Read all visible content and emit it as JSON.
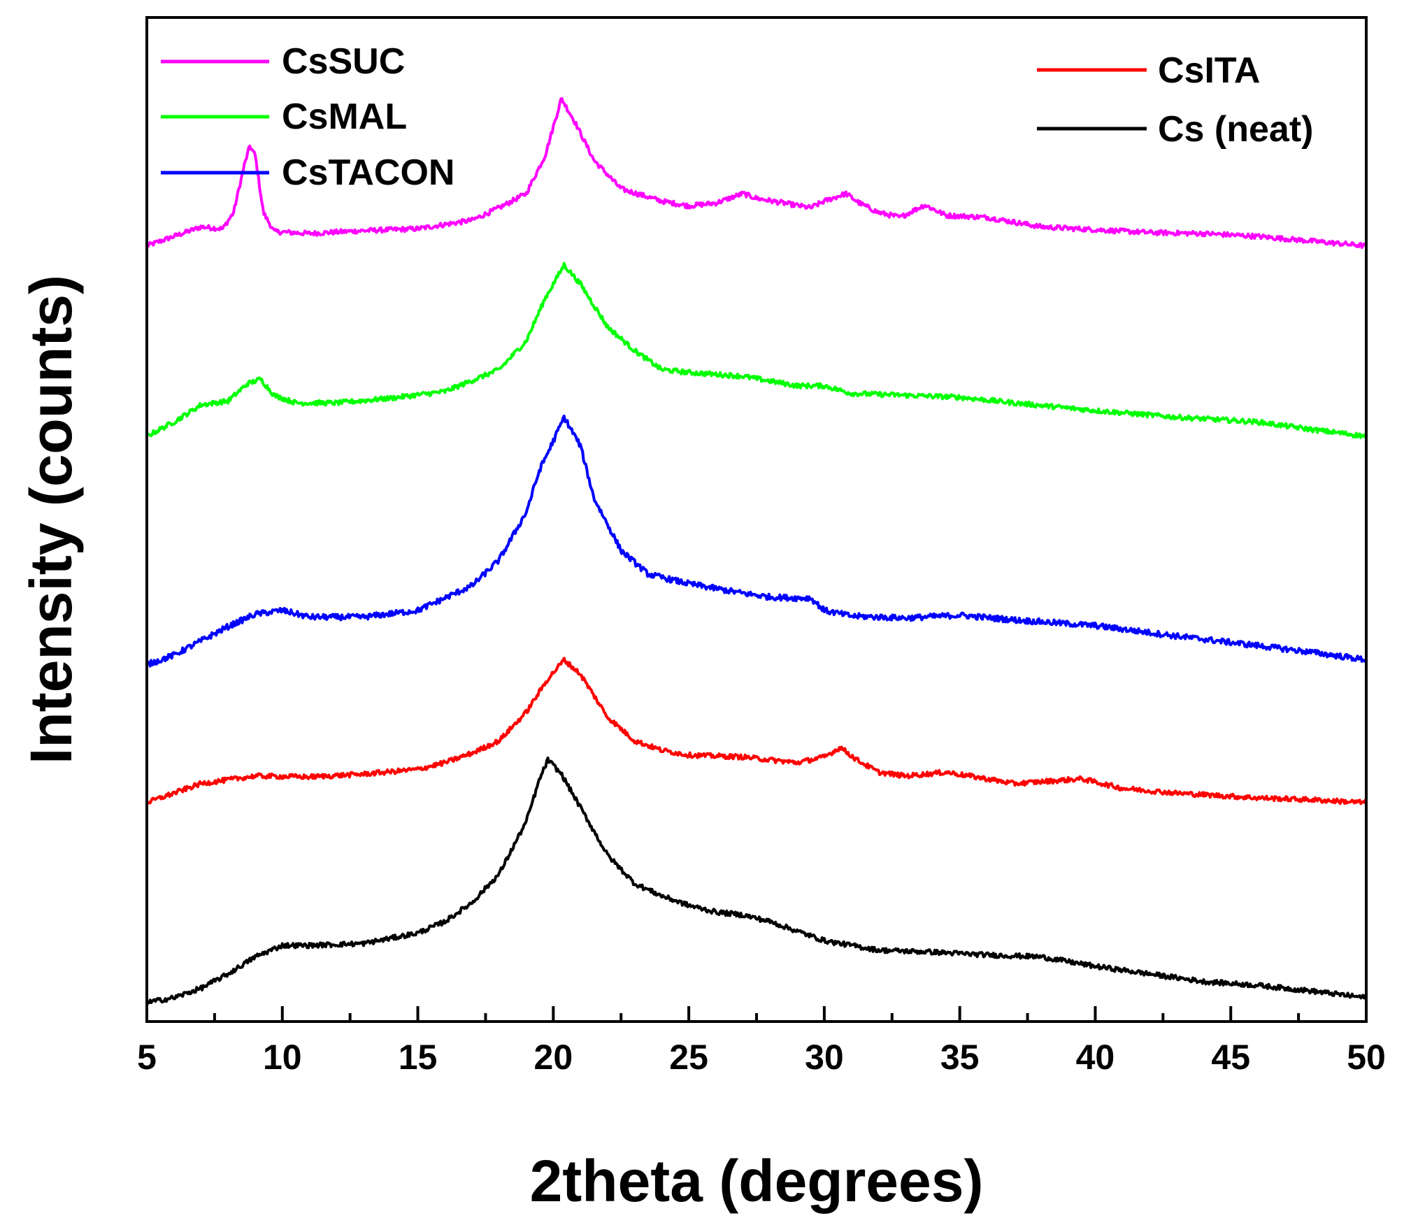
{
  "chart_data": {
    "type": "line",
    "title": "",
    "xlabel": "2theta (degrees)",
    "ylabel": "Intensity (counts)",
    "xlim": [
      5,
      50
    ],
    "ylim": [
      0,
      10.55
    ],
    "grid": false,
    "x_ticks": [
      5,
      10,
      15,
      20,
      25,
      30,
      35,
      40,
      45,
      50
    ],
    "x_tick_labels": [
      "5",
      "10",
      "15",
      "20",
      "25",
      "30",
      "35",
      "40",
      "45",
      "50"
    ],
    "y_ticks_shown": false,
    "legend": [
      {
        "label": "CsSUC",
        "color": "#ff00ff",
        "placement": "top-left"
      },
      {
        "label": "CsMAL",
        "color": "#00ff00",
        "placement": "top-left"
      },
      {
        "label": "CsTACON",
        "color": "#0000ff",
        "placement": "top-left"
      },
      {
        "label": "CsITA",
        "color": "#ff0000",
        "placement": "top-right"
      },
      {
        "label": "Cs (neat)",
        "color": "#000000",
        "placement": "top-right"
      }
    ],
    "series": [
      {
        "name": "CsSUC",
        "color": "#ff00ff",
        "noise": 0.025,
        "points": [
          [
            5,
            8.15
          ],
          [
            6,
            8.25
          ],
          [
            7,
            8.35
          ],
          [
            7.8,
            8.33
          ],
          [
            8.2,
            8.5
          ],
          [
            8.6,
            9.0
          ],
          [
            8.8,
            9.2
          ],
          [
            9.0,
            9.1
          ],
          [
            9.3,
            8.5
          ],
          [
            9.7,
            8.3
          ],
          [
            11,
            8.28
          ],
          [
            13,
            8.31
          ],
          [
            15,
            8.33
          ],
          [
            17,
            8.42
          ],
          [
            18,
            8.55
          ],
          [
            19,
            8.7
          ],
          [
            19.7,
            9.1
          ],
          [
            20.3,
            9.7
          ],
          [
            20.8,
            9.45
          ],
          [
            21.5,
            9.05
          ],
          [
            22.5,
            8.75
          ],
          [
            24,
            8.62
          ],
          [
            25,
            8.57
          ],
          [
            26,
            8.6
          ],
          [
            27,
            8.7
          ],
          [
            27.5,
            8.65
          ],
          [
            28.5,
            8.6
          ],
          [
            29.5,
            8.55
          ],
          [
            30,
            8.62
          ],
          [
            30.8,
            8.7
          ],
          [
            31.3,
            8.6
          ],
          [
            32,
            8.5
          ],
          [
            32.8,
            8.45
          ],
          [
            33.7,
            8.58
          ],
          [
            34.5,
            8.47
          ],
          [
            36,
            8.45
          ],
          [
            38,
            8.35
          ],
          [
            40,
            8.32
          ],
          [
            42,
            8.29
          ],
          [
            44,
            8.28
          ],
          [
            46,
            8.25
          ],
          [
            48,
            8.2
          ],
          [
            50,
            8.15
          ]
        ]
      },
      {
        "name": "CsMAL",
        "color": "#00ff00",
        "noise": 0.025,
        "points": [
          [
            5,
            6.15
          ],
          [
            6,
            6.3
          ],
          [
            7,
            6.48
          ],
          [
            8,
            6.52
          ],
          [
            8.7,
            6.7
          ],
          [
            9.2,
            6.75
          ],
          [
            9.7,
            6.58
          ],
          [
            10.5,
            6.5
          ],
          [
            12,
            6.5
          ],
          [
            14,
            6.55
          ],
          [
            16,
            6.62
          ],
          [
            18,
            6.85
          ],
          [
            19,
            7.15
          ],
          [
            19.7,
            7.6
          ],
          [
            20.4,
            7.95
          ],
          [
            21,
            7.75
          ],
          [
            22,
            7.3
          ],
          [
            23,
            7.05
          ],
          [
            24,
            6.85
          ],
          [
            25,
            6.82
          ],
          [
            26,
            6.8
          ],
          [
            27,
            6.78
          ],
          [
            28,
            6.73
          ],
          [
            29,
            6.68
          ],
          [
            30,
            6.68
          ],
          [
            31,
            6.6
          ],
          [
            33,
            6.58
          ],
          [
            35,
            6.56
          ],
          [
            37,
            6.5
          ],
          [
            40,
            6.42
          ],
          [
            43,
            6.35
          ],
          [
            46,
            6.3
          ],
          [
            48,
            6.22
          ],
          [
            50,
            6.15
          ]
        ]
      },
      {
        "name": "CsTACON",
        "color": "#0000ff",
        "noise": 0.03,
        "points": [
          [
            5,
            3.75
          ],
          [
            6,
            3.85
          ],
          [
            7,
            4.0
          ],
          [
            8,
            4.15
          ],
          [
            9,
            4.28
          ],
          [
            10,
            4.32
          ],
          [
            11,
            4.25
          ],
          [
            13,
            4.25
          ],
          [
            15,
            4.32
          ],
          [
            16,
            4.45
          ],
          [
            17,
            4.58
          ],
          [
            18,
            4.85
          ],
          [
            19,
            5.35
          ],
          [
            19.5,
            5.8
          ],
          [
            20,
            6.1
          ],
          [
            20.4,
            6.35
          ],
          [
            21,
            6.05
          ],
          [
            21.5,
            5.5
          ],
          [
            22.5,
            4.95
          ],
          [
            23.5,
            4.7
          ],
          [
            25,
            4.6
          ],
          [
            26,
            4.55
          ],
          [
            27,
            4.5
          ],
          [
            28,
            4.46
          ],
          [
            29,
            4.45
          ],
          [
            29.5,
            4.45
          ],
          [
            30,
            4.32
          ],
          [
            31,
            4.26
          ],
          [
            33,
            4.24
          ],
          [
            35,
            4.27
          ],
          [
            37,
            4.22
          ],
          [
            40,
            4.16
          ],
          [
            43,
            4.05
          ],
          [
            46,
            3.95
          ],
          [
            48,
            3.88
          ],
          [
            50,
            3.8
          ]
        ]
      },
      {
        "name": "CsITA",
        "color": "#ff0000",
        "noise": 0.025,
        "points": [
          [
            5,
            2.3
          ],
          [
            6,
            2.4
          ],
          [
            7,
            2.5
          ],
          [
            9,
            2.58
          ],
          [
            11,
            2.57
          ],
          [
            13,
            2.6
          ],
          [
            15,
            2.65
          ],
          [
            16,
            2.72
          ],
          [
            17,
            2.82
          ],
          [
            18,
            2.95
          ],
          [
            19,
            3.25
          ],
          [
            19.8,
            3.6
          ],
          [
            20.4,
            3.8
          ],
          [
            21,
            3.65
          ],
          [
            22,
            3.2
          ],
          [
            23,
            2.95
          ],
          [
            24,
            2.85
          ],
          [
            25,
            2.8
          ],
          [
            27,
            2.78
          ],
          [
            29,
            2.72
          ],
          [
            30,
            2.78
          ],
          [
            30.6,
            2.88
          ],
          [
            31.2,
            2.75
          ],
          [
            32,
            2.62
          ],
          [
            33,
            2.58
          ],
          [
            34.5,
            2.62
          ],
          [
            36,
            2.55
          ],
          [
            37,
            2.5
          ],
          [
            38,
            2.52
          ],
          [
            39.5,
            2.55
          ],
          [
            41,
            2.45
          ],
          [
            43,
            2.4
          ],
          [
            46,
            2.35
          ],
          [
            48,
            2.33
          ],
          [
            50,
            2.3
          ]
        ]
      },
      {
        "name": "Cs (neat)",
        "color": "#000000",
        "noise": 0.025,
        "points": [
          [
            5,
            0.2
          ],
          [
            6,
            0.25
          ],
          [
            7,
            0.35
          ],
          [
            8,
            0.5
          ],
          [
            9,
            0.68
          ],
          [
            10,
            0.8
          ],
          [
            11,
            0.8
          ],
          [
            13,
            0.82
          ],
          [
            15,
            0.93
          ],
          [
            16,
            1.05
          ],
          [
            17,
            1.25
          ],
          [
            18,
            1.55
          ],
          [
            19,
            2.1
          ],
          [
            19.5,
            2.55
          ],
          [
            19.8,
            2.75
          ],
          [
            20.3,
            2.6
          ],
          [
            21,
            2.25
          ],
          [
            22,
            1.75
          ],
          [
            23,
            1.45
          ],
          [
            24,
            1.32
          ],
          [
            25,
            1.22
          ],
          [
            26,
            1.15
          ],
          [
            27,
            1.12
          ],
          [
            28,
            1.05
          ],
          [
            29,
            0.95
          ],
          [
            30,
            0.85
          ],
          [
            32,
            0.75
          ],
          [
            34,
            0.73
          ],
          [
            36,
            0.7
          ],
          [
            38,
            0.68
          ],
          [
            40,
            0.58
          ],
          [
            42,
            0.5
          ],
          [
            44,
            0.42
          ],
          [
            46,
            0.38
          ],
          [
            48,
            0.32
          ],
          [
            50,
            0.25
          ]
        ]
      }
    ]
  }
}
